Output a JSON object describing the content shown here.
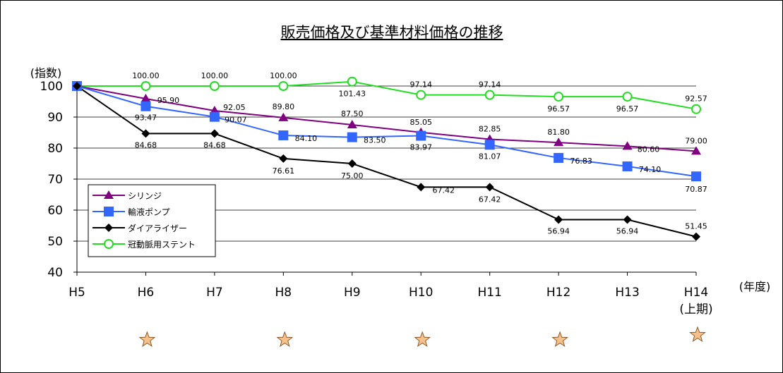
{
  "chart_data": {
    "type": "line",
    "title": "販売価格及び基準材料価格の推移",
    "ylabel": "(指数)",
    "xlabel": "(年度)",
    "categories": [
      "H5",
      "H6",
      "H7",
      "H8",
      "H9",
      "H10",
      "H11",
      "H12",
      "H13",
      "H14"
    ],
    "category_sublabels": [
      "",
      "",
      "",
      "",
      "",
      "",
      "",
      "",
      "",
      "(上期)"
    ],
    "ylim": [
      40,
      100
    ],
    "yticks": [
      40,
      50,
      60,
      70,
      80,
      90,
      100
    ],
    "grid": true,
    "legend_position": "lower-left",
    "series": [
      {
        "name": "シリンジ",
        "color": "#800080",
        "marker": "triangle",
        "values": [
          100,
          95.9,
          92.05,
          89.8,
          87.5,
          85.05,
          82.85,
          81.8,
          80.6,
          79.0
        ],
        "labels": [
          "",
          "95.90",
          "92.05",
          "89.80",
          "87.50",
          "85.05",
          "82.85",
          "81.80",
          "80.60",
          "79.00"
        ]
      },
      {
        "name": "輸液ポンプ",
        "color": "#3366FF",
        "marker": "square",
        "values": [
          100,
          93.47,
          90.07,
          84.1,
          83.5,
          83.97,
          81.07,
          76.83,
          74.1,
          70.87
        ],
        "labels": [
          "",
          "93.47",
          "90.07",
          "84.10",
          "83.50",
          "83.97",
          "81.07",
          "76.83",
          "74.10",
          "70.87"
        ]
      },
      {
        "name": "ダイアライザー",
        "color": "#000000",
        "marker": "diamond",
        "values": [
          100,
          84.68,
          84.68,
          76.61,
          75.0,
          67.42,
          67.42,
          56.94,
          56.94,
          51.45
        ],
        "labels": [
          "",
          "84.68",
          "84.68",
          "76.61",
          "75.00",
          "67.42",
          "67.42",
          "56.94",
          "56.94",
          "51.45"
        ]
      },
      {
        "name": "冠動脈用ステント",
        "color": "#22DD22",
        "marker": "circle",
        "values": [
          100,
          100.0,
          100.0,
          100.0,
          101.43,
          97.14,
          97.14,
          96.57,
          96.57,
          92.57
        ],
        "labels": [
          "",
          "100.00",
          "100.00",
          "100.00",
          "101.43",
          "97.14",
          "97.14",
          "96.57",
          "96.57",
          "92.57"
        ]
      }
    ],
    "star_markers": [
      "H6",
      "H8",
      "H10",
      "H12",
      "H14"
    ],
    "star_color": "#F5C08A"
  }
}
